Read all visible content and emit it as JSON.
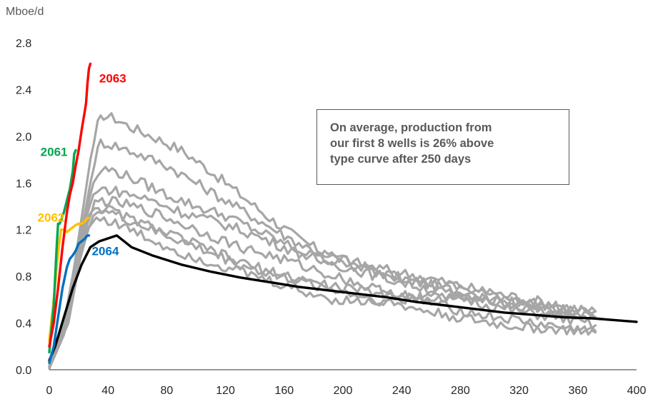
{
  "chart_data": {
    "type": "line",
    "unit_label": "Mboe/d",
    "xlim": [
      0,
      400
    ],
    "ylim": [
      0,
      2.8
    ],
    "x_ticks": [
      "0",
      "40",
      "80",
      "120",
      "160",
      "200",
      "240",
      "280",
      "320",
      "360",
      "400"
    ],
    "y_ticks": [
      "0.0",
      "0.4",
      "0.8",
      "1.2",
      "1.6",
      "2.0",
      "2.4",
      "2.8"
    ],
    "grid": false,
    "annotation": {
      "lines": [
        "On average, production from",
        "our first 8 wells is 26% above",
        "type curve after 250 days"
      ]
    },
    "colors": {
      "gray": "#a6a6a6",
      "type_curve": "#000000",
      "w2063": "#ff0000",
      "w2061": "#00a651",
      "w2062": "#ffc000",
      "w2064": "#0070c0",
      "axis": "#595959"
    },
    "series": [
      {
        "role": "gray",
        "points": [
          [
            0,
            0.02
          ],
          [
            8,
            0.25
          ],
          [
            16,
            0.8
          ],
          [
            22,
            1.3
          ],
          [
            28,
            1.8
          ],
          [
            33,
            2.1
          ],
          [
            37,
            2.18
          ],
          [
            45,
            2.15
          ],
          [
            55,
            2.08
          ],
          [
            70,
            2.0
          ],
          [
            90,
            1.88
          ],
          [
            110,
            1.7
          ],
          [
            130,
            1.5
          ],
          [
            150,
            1.3
          ],
          [
            170,
            1.12
          ],
          [
            190,
            0.98
          ],
          [
            210,
            0.9
          ],
          [
            230,
            0.82
          ],
          [
            250,
            0.75
          ],
          [
            270,
            0.7
          ],
          [
            290,
            0.64
          ],
          [
            310,
            0.58
          ],
          [
            330,
            0.54
          ],
          [
            350,
            0.51
          ],
          [
            372,
            0.5
          ]
        ]
      },
      {
        "role": "gray",
        "points": [
          [
            0,
            0.03
          ],
          [
            10,
            0.35
          ],
          [
            18,
            0.9
          ],
          [
            25,
            1.4
          ],
          [
            31,
            1.8
          ],
          [
            35,
            1.95
          ],
          [
            45,
            1.92
          ],
          [
            60,
            1.85
          ],
          [
            80,
            1.75
          ],
          [
            100,
            1.6
          ],
          [
            120,
            1.45
          ],
          [
            140,
            1.3
          ],
          [
            160,
            1.15
          ],
          [
            180,
            1.02
          ],
          [
            200,
            0.95
          ],
          [
            220,
            0.88
          ],
          [
            240,
            0.83
          ],
          [
            260,
            0.78
          ],
          [
            280,
            0.72
          ],
          [
            300,
            0.66
          ],
          [
            320,
            0.62
          ],
          [
            340,
            0.57
          ],
          [
            360,
            0.52
          ],
          [
            372,
            0.5
          ]
        ]
      },
      {
        "role": "gray",
        "points": [
          [
            0,
            0.01
          ],
          [
            9,
            0.3
          ],
          [
            17,
            0.85
          ],
          [
            24,
            1.3
          ],
          [
            30,
            1.6
          ],
          [
            36,
            1.72
          ],
          [
            45,
            1.7
          ],
          [
            60,
            1.62
          ],
          [
            80,
            1.5
          ],
          [
            100,
            1.4
          ],
          [
            120,
            1.32
          ],
          [
            140,
            1.2
          ],
          [
            160,
            1.08
          ],
          [
            180,
            0.97
          ],
          [
            200,
            0.9
          ],
          [
            220,
            0.84
          ],
          [
            240,
            0.79
          ],
          [
            260,
            0.74
          ],
          [
            280,
            0.7
          ],
          [
            300,
            0.65
          ],
          [
            320,
            0.6
          ],
          [
            340,
            0.55
          ],
          [
            360,
            0.51
          ]
        ]
      },
      {
        "role": "gray",
        "points": [
          [
            0,
            0.05
          ],
          [
            10,
            0.4
          ],
          [
            18,
            0.95
          ],
          [
            25,
            1.3
          ],
          [
            30,
            1.5
          ],
          [
            36,
            1.55
          ],
          [
            50,
            1.52
          ],
          [
            70,
            1.45
          ],
          [
            90,
            1.35
          ],
          [
            110,
            1.28
          ],
          [
            130,
            1.2
          ],
          [
            150,
            1.1
          ],
          [
            170,
            1.0
          ],
          [
            190,
            0.92
          ],
          [
            210,
            0.85
          ],
          [
            230,
            0.78
          ],
          [
            250,
            0.72
          ],
          [
            270,
            0.66
          ],
          [
            290,
            0.58
          ],
          [
            310,
            0.52
          ],
          [
            330,
            0.48
          ],
          [
            350,
            0.44
          ],
          [
            372,
            0.38
          ]
        ]
      },
      {
        "role": "gray",
        "points": [
          [
            0,
            0.02
          ],
          [
            11,
            0.35
          ],
          [
            19,
            0.9
          ],
          [
            26,
            1.25
          ],
          [
            31,
            1.42
          ],
          [
            36,
            1.45
          ],
          [
            50,
            1.42
          ],
          [
            70,
            1.35
          ],
          [
            90,
            1.25
          ],
          [
            110,
            1.15
          ],
          [
            130,
            1.05
          ],
          [
            150,
            0.98
          ],
          [
            170,
            0.9
          ],
          [
            190,
            0.82
          ],
          [
            210,
            0.74
          ],
          [
            230,
            0.66
          ],
          [
            250,
            0.6
          ],
          [
            270,
            0.54
          ],
          [
            290,
            0.48
          ],
          [
            310,
            0.44
          ],
          [
            330,
            0.4
          ],
          [
            350,
            0.36
          ],
          [
            372,
            0.33
          ]
        ]
      },
      {
        "role": "gray",
        "points": [
          [
            0,
            0.01
          ],
          [
            10,
            0.3
          ],
          [
            18,
            0.8
          ],
          [
            25,
            1.15
          ],
          [
            30,
            1.32
          ],
          [
            36,
            1.38
          ],
          [
            50,
            1.3
          ],
          [
            70,
            1.2
          ],
          [
            90,
            1.1
          ],
          [
            110,
            1.0
          ],
          [
            130,
            0.9
          ],
          [
            150,
            0.82
          ],
          [
            170,
            0.76
          ],
          [
            190,
            0.7
          ],
          [
            210,
            0.64
          ],
          [
            230,
            0.58
          ],
          [
            250,
            0.52
          ],
          [
            270,
            0.47
          ],
          [
            290,
            0.42
          ],
          [
            310,
            0.38
          ],
          [
            330,
            0.36
          ],
          [
            350,
            0.34
          ],
          [
            372,
            0.32
          ]
        ]
      },
      {
        "role": "gray",
        "points": [
          [
            0,
            0.03
          ],
          [
            12,
            0.45
          ],
          [
            20,
            1.0
          ],
          [
            26,
            1.3
          ],
          [
            31,
            1.4
          ],
          [
            38,
            1.38
          ],
          [
            50,
            1.32
          ],
          [
            70,
            1.22
          ],
          [
            90,
            1.12
          ],
          [
            110,
            1.02
          ],
          [
            130,
            0.92
          ],
          [
            150,
            0.84
          ],
          [
            170,
            0.78
          ],
          [
            190,
            0.72
          ],
          [
            210,
            0.68
          ],
          [
            230,
            0.66
          ],
          [
            250,
            0.64
          ],
          [
            270,
            0.62
          ],
          [
            290,
            0.6
          ],
          [
            310,
            0.56
          ],
          [
            330,
            0.52
          ],
          [
            350,
            0.48
          ],
          [
            372,
            0.45
          ]
        ]
      },
      {
        "role": "gray",
        "points": [
          [
            0,
            0.02
          ],
          [
            13,
            0.4
          ],
          [
            21,
            0.95
          ],
          [
            27,
            1.22
          ],
          [
            32,
            1.3
          ],
          [
            40,
            1.28
          ],
          [
            55,
            1.2
          ],
          [
            75,
            1.08
          ],
          [
            95,
            0.98
          ],
          [
            115,
            0.9
          ],
          [
            135,
            0.82
          ],
          [
            155,
            0.74
          ],
          [
            175,
            0.66
          ],
          [
            195,
            0.6
          ],
          [
            215,
            0.58
          ],
          [
            235,
            0.6
          ],
          [
            255,
            0.62
          ],
          [
            275,
            0.64
          ],
          [
            295,
            0.62
          ],
          [
            315,
            0.58
          ],
          [
            335,
            0.54
          ],
          [
            355,
            0.48
          ],
          [
            372,
            0.44
          ]
        ]
      },
      {
        "role": "type_curve",
        "points": [
          [
            0,
            0.08
          ],
          [
            4,
            0.2
          ],
          [
            10,
            0.45
          ],
          [
            16,
            0.7
          ],
          [
            22,
            0.9
          ],
          [
            28,
            1.05
          ],
          [
            34,
            1.1
          ],
          [
            46,
            1.15
          ],
          [
            56,
            1.05
          ],
          [
            70,
            0.98
          ],
          [
            90,
            0.9
          ],
          [
            110,
            0.84
          ],
          [
            130,
            0.79
          ],
          [
            150,
            0.75
          ],
          [
            170,
            0.71
          ],
          [
            190,
            0.68
          ],
          [
            210,
            0.65
          ],
          [
            230,
            0.62
          ],
          [
            250,
            0.58
          ],
          [
            270,
            0.55
          ],
          [
            290,
            0.52
          ],
          [
            310,
            0.49
          ],
          [
            330,
            0.47
          ],
          [
            350,
            0.45
          ],
          [
            370,
            0.44
          ],
          [
            390,
            0.42
          ],
          [
            400,
            0.41
          ]
        ]
      },
      {
        "role": "w2063",
        "label": "2063",
        "points": [
          [
            0,
            0.2
          ],
          [
            3,
            0.4
          ],
          [
            6,
            0.7
          ],
          [
            9,
            1.05
          ],
          [
            12,
            1.35
          ],
          [
            14,
            1.5
          ],
          [
            16,
            1.6
          ],
          [
            18,
            1.75
          ],
          [
            20,
            1.88
          ],
          [
            22,
            2.05
          ],
          [
            24,
            2.2
          ],
          [
            25,
            2.28
          ],
          [
            26,
            2.45
          ],
          [
            27,
            2.58
          ],
          [
            28,
            2.62
          ]
        ]
      },
      {
        "role": "w2061",
        "label": "2061",
        "points": [
          [
            0,
            0.15
          ],
          [
            3,
            0.55
          ],
          [
            5,
            1.05
          ],
          [
            6,
            1.25
          ],
          [
            7,
            1.25
          ],
          [
            8,
            1.28
          ],
          [
            10,
            1.35
          ],
          [
            12,
            1.45
          ],
          [
            14,
            1.55
          ],
          [
            16,
            1.7
          ],
          [
            17,
            1.85
          ],
          [
            18,
            1.88
          ]
        ]
      },
      {
        "role": "w2062",
        "label": "2062",
        "points": [
          [
            0,
            0.25
          ],
          [
            3,
            0.6
          ],
          [
            6,
            1.0
          ],
          [
            8,
            1.2
          ],
          [
            10,
            1.2
          ],
          [
            12,
            1.18
          ],
          [
            14,
            1.2
          ],
          [
            16,
            1.22
          ],
          [
            18,
            1.24
          ],
          [
            20,
            1.25
          ],
          [
            22,
            1.25
          ],
          [
            24,
            1.27
          ],
          [
            26,
            1.3
          ],
          [
            27,
            1.3
          ]
        ]
      },
      {
        "role": "w2064",
        "label": "2064",
        "points": [
          [
            0,
            0.06
          ],
          [
            3,
            0.2
          ],
          [
            6,
            0.45
          ],
          [
            9,
            0.7
          ],
          [
            12,
            0.88
          ],
          [
            14,
            0.95
          ],
          [
            16,
            0.98
          ],
          [
            18,
            1.02
          ],
          [
            20,
            1.08
          ],
          [
            22,
            1.1
          ],
          [
            24,
            1.12
          ],
          [
            26,
            1.15
          ],
          [
            27,
            1.15
          ]
        ]
      }
    ],
    "series_labels": [
      {
        "role": "w2063",
        "label": "2063",
        "x": 34,
        "y": 2.46
      },
      {
        "role": "w2061",
        "label": "2061",
        "x": -6,
        "y": 1.83
      },
      {
        "role": "w2062",
        "label": "2062",
        "x": -8,
        "y": 1.27
      },
      {
        "role": "w2064",
        "label": "2064",
        "x": 29,
        "y": 0.98
      }
    ]
  }
}
